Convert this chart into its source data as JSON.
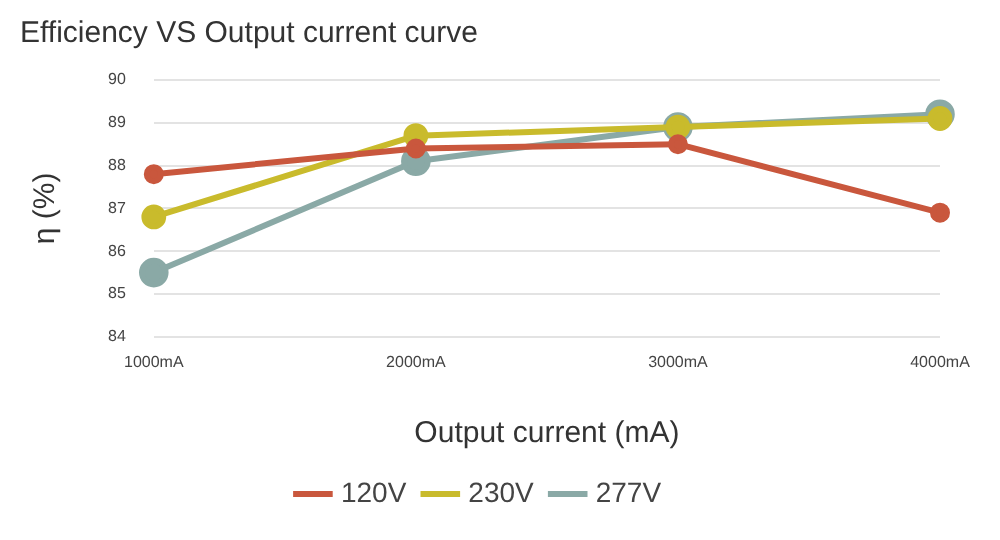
{
  "chart_data": {
    "type": "line",
    "title": "Efficiency VS Output current curve",
    "xlabel": "Output current (mA)",
    "ylabel": "η (%)",
    "categories": [
      "1000mA",
      "2000mA",
      "3000mA",
      "4000mA"
    ],
    "series": [
      {
        "name": "120V",
        "color": "#c9573d",
        "values": [
          87.8,
          88.4,
          88.5,
          86.9
        ]
      },
      {
        "name": "230V",
        "color": "#c9bb2c",
        "values": [
          86.8,
          88.7,
          88.9,
          89.1
        ]
      },
      {
        "name": "277V",
        "color": "#8aa9a6",
        "values": [
          85.5,
          88.1,
          88.9,
          89.2
        ]
      }
    ],
    "ylim": [
      84,
      90
    ],
    "yticks": [
      84,
      85,
      86,
      87,
      88,
      89,
      90
    ],
    "grid": "y",
    "legend": "bottom",
    "marker": "circle",
    "line_style": "solid"
  }
}
